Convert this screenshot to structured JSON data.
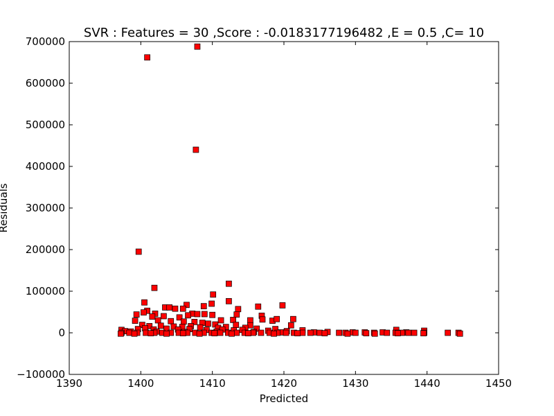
{
  "chart_data": {
    "type": "scatter",
    "title": "SVR : Features = 30 ,Score : -0.0183177196482 ,E = 0.5 ,C= 10",
    "xlabel": "Predicted",
    "ylabel": "Residuals",
    "xlim": [
      1390,
      1450
    ],
    "ylim": [
      -100000,
      700000
    ],
    "xticks": [
      "1390",
      "1400",
      "1410",
      "1420",
      "1430",
      "1440",
      "1450"
    ],
    "yticks": [
      "−100000",
      "0",
      "100000",
      "200000",
      "300000",
      "400000",
      "500000",
      "600000",
      "700000"
    ],
    "xtick_values": [
      1390,
      1400,
      1410,
      1420,
      1430,
      1440,
      1450
    ],
    "ytick_values": [
      -100000,
      0,
      100000,
      200000,
      300000,
      400000,
      500000,
      600000,
      700000
    ],
    "grid": false,
    "marker": "square",
    "marker_color": "#ff0000",
    "marker_edge_color": "#000000",
    "points": [
      [
        1400.9,
        662000
      ],
      [
        1407.9,
        688000
      ],
      [
        1407.7,
        440000
      ],
      [
        1399.7,
        195000
      ],
      [
        1401.9,
        108000
      ],
      [
        1412.3,
        118000
      ],
      [
        1410.1,
        92000
      ],
      [
        1412.3,
        76000
      ],
      [
        1400.5,
        73000
      ],
      [
        1406.4,
        67000
      ],
      [
        1409.9,
        70000
      ],
      [
        1408.8,
        64000
      ],
      [
        1416.4,
        63000
      ],
      [
        1419.8,
        66000
      ],
      [
        1403.4,
        61000
      ],
      [
        1404.0,
        61000
      ],
      [
        1404.8,
        58000
      ],
      [
        1405.9,
        58000
      ],
      [
        1413.6,
        57000
      ],
      [
        1400.9,
        53000
      ],
      [
        1400.4,
        49000
      ],
      [
        1399.4,
        44000
      ],
      [
        1402.0,
        46000
      ],
      [
        1407.2,
        46000
      ],
      [
        1407.9,
        45000
      ],
      [
        1408.9,
        45000
      ],
      [
        1410.0,
        43000
      ],
      [
        1413.4,
        44000
      ],
      [
        1416.9,
        41000
      ],
      [
        1406.6,
        42000
      ],
      [
        1401.6,
        39000
      ],
      [
        1403.2,
        40000
      ],
      [
        1405.4,
        37000
      ],
      [
        1411.2,
        30000
      ],
      [
        1412.9,
        31000
      ],
      [
        1415.3,
        30000
      ],
      [
        1417.0,
        32000
      ],
      [
        1418.4,
        29000
      ],
      [
        1419.0,
        33000
      ],
      [
        1421.3,
        33000
      ],
      [
        1399.2,
        29000
      ],
      [
        1402.4,
        30000
      ],
      [
        1404.2,
        28000
      ],
      [
        1406.0,
        27000
      ],
      [
        1407.5,
        26000
      ],
      [
        1408.6,
        24000
      ],
      [
        1409.4,
        22000
      ],
      [
        1410.4,
        20000
      ],
      [
        1413.3,
        19000
      ],
      [
        1415.3,
        18000
      ],
      [
        1421.0,
        18000
      ],
      [
        1400.2,
        19000
      ],
      [
        1401.2,
        16000
      ],
      [
        1402.8,
        17000
      ],
      [
        1404.6,
        15000
      ],
      [
        1405.8,
        14000
      ],
      [
        1407.0,
        16000
      ],
      [
        1408.3,
        13000
      ],
      [
        1410.8,
        12000
      ],
      [
        1411.9,
        14000
      ],
      [
        1414.6,
        12000
      ],
      [
        1416.2,
        10000
      ],
      [
        1418.8,
        9000
      ],
      [
        1399.6,
        9000
      ],
      [
        1400.6,
        11000
      ],
      [
        1401.8,
        8000
      ],
      [
        1403.6,
        10000
      ],
      [
        1405.2,
        8000
      ],
      [
        1406.8,
        9000
      ],
      [
        1409.2,
        7000
      ],
      [
        1411.4,
        8000
      ],
      [
        1413.0,
        6000
      ],
      [
        1414.2,
        7000
      ],
      [
        1417.8,
        5000
      ],
      [
        1420.4,
        4000
      ],
      [
        1422.6,
        6000
      ],
      [
        1435.7,
        7000
      ],
      [
        1439.6,
        5000
      ],
      [
        1397.3,
        7000
      ],
      [
        1397.8,
        4000
      ],
      [
        1398.6,
        3000
      ],
      [
        1402.2,
        3000
      ],
      [
        1406.1,
        2000
      ],
      [
        1410.6,
        3000
      ],
      [
        1415.8,
        2000
      ],
      [
        1419.6,
        1000
      ],
      [
        1424.2,
        1000
      ],
      [
        1426.1,
        2000
      ],
      [
        1429.6,
        1000
      ],
      [
        1431.3,
        1000
      ],
      [
        1433.8,
        1000
      ],
      [
        1437.1,
        1000
      ],
      [
        1397.3,
        0
      ],
      [
        1398.4,
        0
      ],
      [
        1399.5,
        0
      ],
      [
        1400.7,
        0
      ],
      [
        1401.9,
        0
      ],
      [
        1403.0,
        0
      ],
      [
        1404.2,
        0
      ],
      [
        1405.3,
        0
      ],
      [
        1406.5,
        0
      ],
      [
        1407.6,
        0
      ],
      [
        1408.8,
        0
      ],
      [
        1409.9,
        0
      ],
      [
        1411.1,
        0
      ],
      [
        1412.2,
        0
      ],
      [
        1413.4,
        0
      ],
      [
        1414.5,
        0
      ],
      [
        1415.7,
        0
      ],
      [
        1416.8,
        0
      ],
      [
        1418.0,
        0
      ],
      [
        1419.1,
        0
      ],
      [
        1420.3,
        0
      ],
      [
        1421.4,
        0
      ],
      [
        1422.6,
        0
      ],
      [
        1423.7,
        0
      ],
      [
        1425.0,
        0
      ],
      [
        1427.7,
        0
      ],
      [
        1428.6,
        0
      ],
      [
        1430.0,
        0
      ],
      [
        1432.6,
        0
      ],
      [
        1434.4,
        0
      ],
      [
        1435.6,
        0
      ],
      [
        1436.5,
        0
      ],
      [
        1437.4,
        0
      ],
      [
        1438.2,
        0
      ],
      [
        1439.6,
        0
      ],
      [
        1442.9,
        0
      ],
      [
        1444.4,
        0
      ],
      [
        1397.2,
        -2000
      ],
      [
        1399.1,
        -2000
      ],
      [
        1401.4,
        -1000
      ],
      [
        1403.6,
        -2000
      ],
      [
        1405.9,
        -1000
      ],
      [
        1408.2,
        -2000
      ],
      [
        1410.3,
        -1000
      ],
      [
        1412.7,
        -2000
      ],
      [
        1415.0,
        -1000
      ],
      [
        1418.6,
        -2000
      ],
      [
        1421.9,
        -1000
      ],
      [
        1425.7,
        -1000
      ],
      [
        1428.9,
        -2000
      ],
      [
        1431.5,
        -1000
      ],
      [
        1432.7,
        -2000
      ],
      [
        1435.9,
        -1000
      ],
      [
        1439.5,
        -1000
      ],
      [
        1444.6,
        -2000
      ]
    ]
  }
}
